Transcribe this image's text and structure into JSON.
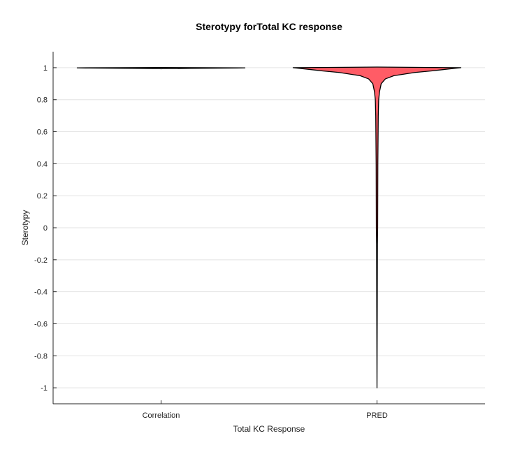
{
  "chart_data": {
    "type": "violin",
    "title": "Sterotypy forTotal KC response",
    "xlabel": "Total KC Response",
    "ylabel": "Sterotypy",
    "ylim": [
      -1.1,
      1.1
    ],
    "yticks": [
      -1,
      -0.8,
      -0.6,
      -0.4,
      -0.2,
      0,
      0.2,
      0.4,
      0.6,
      0.8,
      1
    ],
    "ytick_labels": [
      "-1",
      "-0.8",
      "-0.6",
      "-0.4",
      "-0.2",
      "0",
      "0.2",
      "0.4",
      "0.6",
      "0.8",
      "1"
    ],
    "categories": [
      "Correlation",
      "PRED"
    ],
    "grid": "horizontal",
    "violins": [
      {
        "category": "Correlation",
        "color": "#ffffff",
        "profile": [
          {
            "y": 0.993,
            "w": 0.0
          },
          {
            "y": 0.994,
            "w": 0.02
          },
          {
            "y": 0.996,
            "w": 0.35
          },
          {
            "y": 0.998,
            "w": 0.9
          },
          {
            "y": 0.999,
            "w": 1.0
          },
          {
            "y": 1.0,
            "w": 0.5
          },
          {
            "y": 1.001,
            "w": 0.0
          }
        ]
      },
      {
        "category": "PRED",
        "color": "#ff5c66",
        "profile": [
          {
            "y": -1.0,
            "w": 0.0
          },
          {
            "y": -0.5,
            "w": 0.003
          },
          {
            "y": -0.1,
            "w": 0.005
          },
          {
            "y": 0.0,
            "w": 0.008
          },
          {
            "y": 0.4,
            "w": 0.01
          },
          {
            "y": 0.7,
            "w": 0.015
          },
          {
            "y": 0.8,
            "w": 0.02
          },
          {
            "y": 0.85,
            "w": 0.03
          },
          {
            "y": 0.9,
            "w": 0.05
          },
          {
            "y": 0.93,
            "w": 0.1
          },
          {
            "y": 0.95,
            "w": 0.2
          },
          {
            "y": 0.97,
            "w": 0.45
          },
          {
            "y": 0.98,
            "w": 0.65
          },
          {
            "y": 0.99,
            "w": 0.82
          },
          {
            "y": 1.0,
            "w": 1.0
          },
          {
            "y": 1.004,
            "w": 0.0
          }
        ]
      }
    ]
  }
}
